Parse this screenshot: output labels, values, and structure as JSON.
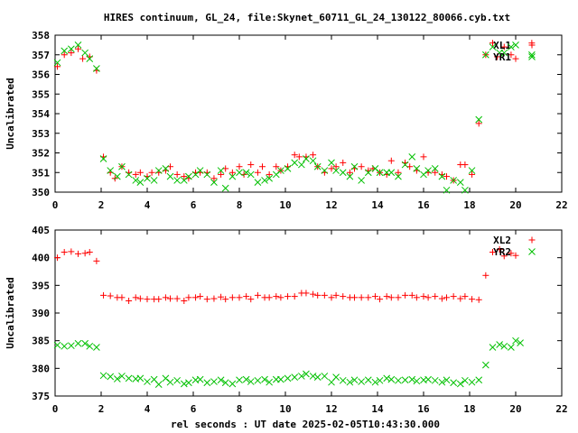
{
  "chart_data": {
    "title": "HIRES continuum, GL_24, file:Skynet_60711_GL_24_130122_80066.cyb.txt",
    "xlabel": "rel seconds : UT date 2025-02-05T10:43:30.000",
    "colors": {
      "red": "#ff0000",
      "green": "#00c000",
      "axis": "#000000"
    },
    "panels": [
      {
        "type": "scatter",
        "ylabel": "Uncalibrated",
        "xlim": [
          0,
          22
        ],
        "ylim": [
          350,
          358
        ],
        "xticks": [
          "0",
          "2",
          "4",
          "6",
          "8",
          "10",
          "12",
          "14",
          "16",
          "18",
          "20",
          "22"
        ],
        "yticks": [
          "350",
          "351",
          "352",
          "353",
          "354",
          "355",
          "356",
          "357",
          "358"
        ],
        "legend_position": "top-right",
        "series": [
          {
            "name": "XL1",
            "marker": "plus",
            "color": "#ff0000",
            "x": [
              0.1,
              0.4,
              0.7,
              1.0,
              1.2,
              1.5,
              1.8,
              2.1,
              2.4,
              2.6,
              2.9,
              3.2,
              3.5,
              3.7,
              4.0,
              4.2,
              4.5,
              4.8,
              5.0,
              5.3,
              5.6,
              5.8,
              6.1,
              6.3,
              6.6,
              6.9,
              7.2,
              7.4,
              7.7,
              8.0,
              8.2,
              8.5,
              8.8,
              9.0,
              9.3,
              9.6,
              9.8,
              10.1,
              10.4,
              10.6,
              10.9,
              11.2,
              11.4,
              11.7,
              12.0,
              12.2,
              12.5,
              12.8,
              13.0,
              13.3,
              13.6,
              13.8,
              14.1,
              14.4,
              14.6,
              14.9,
              15.2,
              15.4,
              15.7,
              16.0,
              16.2,
              16.5,
              16.8,
              17.0,
              17.3,
              17.6,
              17.8,
              18.1,
              18.4,
              18.7,
              19.0,
              19.2,
              19.5,
              19.8,
              20.0,
              20.7
            ],
            "y": [
              356.4,
              357.0,
              357.1,
              357.3,
              356.8,
              356.9,
              356.2,
              351.8,
              351.0,
              350.7,
              351.3,
              351.0,
              350.9,
              351.0,
              350.8,
              351.0,
              351.0,
              351.1,
              351.3,
              350.9,
              350.8,
              350.7,
              351.0,
              351.0,
              351.0,
              350.7,
              350.9,
              351.2,
              351.0,
              351.3,
              350.9,
              351.4,
              351.0,
              351.3,
              350.9,
              351.3,
              351.1,
              351.3,
              351.9,
              351.8,
              351.8,
              351.9,
              351.3,
              351.0,
              351.2,
              351.3,
              351.5,
              351.0,
              351.2,
              351.3,
              351.1,
              351.2,
              351.0,
              350.9,
              351.6,
              351.0,
              351.5,
              351.3,
              351.1,
              351.8,
              351.0,
              351.0,
              350.9,
              350.8,
              350.6,
              351.4,
              351.4,
              350.9,
              353.5,
              357.0,
              357.6,
              356.9,
              357.4,
              357.0,
              356.8,
              357.6
            ]
          },
          {
            "name": "YR1",
            "marker": "cross",
            "color": "#00c000",
            "x": [
              0.1,
              0.4,
              0.7,
              1.0,
              1.3,
              1.5,
              1.8,
              2.1,
              2.4,
              2.7,
              2.9,
              3.2,
              3.5,
              3.7,
              4.0,
              4.3,
              4.5,
              4.8,
              5.0,
              5.3,
              5.6,
              5.8,
              6.1,
              6.3,
              6.6,
              6.9,
              7.2,
              7.4,
              7.7,
              8.0,
              8.3,
              8.5,
              8.8,
              9.1,
              9.3,
              9.6,
              9.8,
              10.1,
              10.4,
              10.7,
              10.9,
              11.2,
              11.4,
              11.7,
              12.0,
              12.2,
              12.5,
              12.8,
              13.0,
              13.3,
              13.6,
              13.9,
              14.1,
              14.4,
              14.6,
              14.9,
              15.2,
              15.5,
              15.7,
              16.0,
              16.2,
              16.5,
              16.8,
              17.0,
              17.3,
              17.6,
              17.8,
              18.1,
              18.4,
              18.7,
              19.0,
              19.3,
              19.5,
              19.8,
              20.0,
              20.7
            ],
            "y": [
              356.6,
              357.2,
              357.3,
              357.5,
              357.1,
              356.8,
              356.3,
              351.7,
              351.1,
              350.8,
              351.3,
              350.9,
              350.6,
              350.5,
              350.7,
              350.6,
              351.1,
              351.2,
              350.8,
              350.6,
              350.6,
              350.8,
              350.9,
              351.1,
              350.9,
              350.5,
              351.1,
              350.2,
              350.8,
              351.0,
              351.0,
              350.9,
              350.5,
              350.6,
              350.7,
              350.9,
              351.1,
              351.2,
              351.5,
              351.4,
              351.7,
              351.6,
              351.3,
              351.1,
              351.5,
              351.1,
              351.0,
              350.8,
              351.3,
              350.6,
              351.0,
              351.2,
              351.0,
              351.0,
              351.0,
              350.8,
              351.4,
              351.8,
              351.2,
              350.9,
              351.1,
              351.2,
              350.8,
              350.1,
              350.6,
              350.5,
              350.1,
              351.1,
              353.7,
              357.0,
              357.4,
              357.1,
              357.1,
              357.4,
              357.5,
              357.0
            ]
          }
        ]
      },
      {
        "type": "scatter",
        "ylabel": "Uncalibrated",
        "xlim": [
          0,
          22
        ],
        "ylim": [
          375,
          405
        ],
        "xticks": [
          "0",
          "2",
          "4",
          "6",
          "8",
          "10",
          "12",
          "14",
          "16",
          "18",
          "20",
          "22"
        ],
        "yticks": [
          "375",
          "380",
          "385",
          "390",
          "395",
          "400",
          "405"
        ],
        "legend_position": "top-right",
        "series": [
          {
            "name": "XL2",
            "marker": "plus",
            "color": "#ff0000",
            "x": [
              0.1,
              0.4,
              0.7,
              1.0,
              1.3,
              1.5,
              1.8,
              2.1,
              2.4,
              2.7,
              2.9,
              3.2,
              3.5,
              3.7,
              4.0,
              4.3,
              4.5,
              4.8,
              5.0,
              5.3,
              5.6,
              5.8,
              6.1,
              6.3,
              6.6,
              6.9,
              7.2,
              7.4,
              7.7,
              8.0,
              8.3,
              8.5,
              8.8,
              9.1,
              9.3,
              9.6,
              9.8,
              10.1,
              10.4,
              10.7,
              10.9,
              11.2,
              11.4,
              11.7,
              12.0,
              12.2,
              12.5,
              12.8,
              13.0,
              13.3,
              13.6,
              13.9,
              14.1,
              14.4,
              14.6,
              14.9,
              15.2,
              15.5,
              15.7,
              16.0,
              16.2,
              16.5,
              16.8,
              17.0,
              17.3,
              17.6,
              17.8,
              18.1,
              18.4,
              18.7,
              19.0,
              19.3,
              19.5,
              19.8,
              20.0
            ],
            "y": [
              400.0,
              401.0,
              401.1,
              400.7,
              400.8,
              401.0,
              399.4,
              393.2,
              393.1,
              392.8,
              392.8,
              392.2,
              392.8,
              392.6,
              392.5,
              392.5,
              392.5,
              392.8,
              392.6,
              392.6,
              392.2,
              392.8,
              392.8,
              393.0,
              392.5,
              392.6,
              392.9,
              392.5,
              392.8,
              392.8,
              393.0,
              392.5,
              393.2,
              392.8,
              392.8,
              393.0,
              392.8,
              393.0,
              393.0,
              393.6,
              393.6,
              393.4,
              393.2,
              393.2,
              392.8,
              393.2,
              393.0,
              392.8,
              392.8,
              392.8,
              392.8,
              393.0,
              392.5,
              393.0,
              392.8,
              392.8,
              393.2,
              393.2,
              392.8,
              393.0,
              392.8,
              393.0,
              392.6,
              392.8,
              393.0,
              392.6,
              393.0,
              392.5,
              392.4,
              396.8,
              401.0,
              401.5,
              400.3,
              400.8,
              400.4
            ]
          },
          {
            "name": "YR2",
            "marker": "cross",
            "color": "#00c000",
            "x": [
              0.1,
              0.4,
              0.7,
              1.0,
              1.3,
              1.5,
              1.8,
              2.1,
              2.4,
              2.7,
              2.9,
              3.2,
              3.5,
              3.7,
              4.0,
              4.3,
              4.5,
              4.8,
              5.0,
              5.3,
              5.6,
              5.8,
              6.1,
              6.3,
              6.6,
              6.9,
              7.2,
              7.4,
              7.7,
              8.0,
              8.3,
              8.5,
              8.8,
              9.1,
              9.3,
              9.6,
              9.8,
              10.1,
              10.4,
              10.7,
              10.9,
              11.2,
              11.4,
              11.7,
              12.0,
              12.2,
              12.5,
              12.8,
              13.0,
              13.3,
              13.6,
              13.9,
              14.1,
              14.4,
              14.6,
              14.9,
              15.2,
              15.5,
              15.7,
              16.0,
              16.2,
              16.5,
              16.8,
              17.0,
              17.3,
              17.6,
              17.8,
              18.1,
              18.4,
              18.7,
              19.0,
              19.3,
              19.5,
              19.8,
              20.0,
              20.2
            ],
            "y": [
              384.2,
              384.0,
              384.1,
              384.5,
              384.5,
              384.0,
              383.8,
              378.7,
              378.5,
              378.1,
              378.6,
              378.2,
              378.1,
              378.2,
              377.6,
              378.0,
              377.1,
              378.2,
              377.5,
              377.8,
              377.2,
              377.4,
              377.9,
              378.0,
              377.4,
              377.6,
              377.9,
              377.4,
              377.2,
              377.9,
              378.0,
              377.6,
              377.8,
              378.0,
              377.5,
              378.0,
              378.0,
              378.2,
              378.4,
              378.6,
              379.0,
              378.6,
              378.4,
              378.6,
              377.5,
              378.4,
              377.8,
              377.5,
              377.9,
              377.6,
              377.9,
              377.5,
              377.8,
              378.2,
              378.0,
              377.8,
              377.9,
              378.0,
              377.7,
              377.9,
              378.0,
              377.8,
              377.5,
              377.9,
              377.4,
              377.2,
              377.8,
              377.5,
              377.9,
              380.6,
              383.8,
              384.3,
              384.0,
              383.8,
              385.0,
              384.6
            ]
          }
        ]
      }
    ]
  }
}
